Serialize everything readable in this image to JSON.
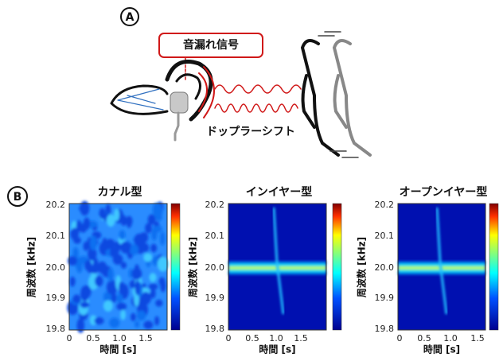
{
  "panel_a": {
    "label": "A",
    "signal_label": "音漏れ信号",
    "doppler_label": "ドップラーシフト"
  },
  "panel_b": {
    "label": "B",
    "plots": [
      {
        "title": "カナル型",
        "x_label": "時間 [s]",
        "y_label": "周波数 [kHz]",
        "xticks": [
          "0",
          "0.5",
          "1.0",
          "1.5"
        ],
        "yticks": [
          "20.2",
          "20.1",
          "20.0",
          "19.9",
          "19.8"
        ]
      },
      {
        "title": "インイヤー型",
        "x_label": "時間 [s]",
        "y_label": "周波数 [kHz]",
        "xticks": [
          "0",
          "0.5",
          "1.0",
          "1.5"
        ],
        "yticks": [
          "20.2",
          "20.1",
          "20.0",
          "19.9",
          "19.8"
        ]
      },
      {
        "title": "オープンイヤー型",
        "x_label": "時間 [s]",
        "y_label": "周波数 [kHz]",
        "xticks": [
          "0",
          "0.5",
          "1.0",
          "1.5"
        ],
        "yticks": [
          "20.2",
          "20.1",
          "20.0",
          "19.9",
          "19.8"
        ]
      }
    ]
  }
}
